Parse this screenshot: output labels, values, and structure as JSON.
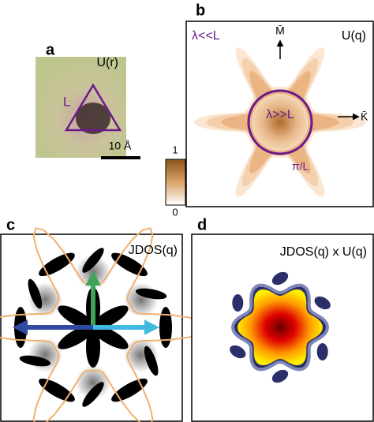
{
  "panels": [
    {
      "label": "a",
      "title": "U(r)",
      "length_label": "L",
      "scale_bar": "10 Å"
    },
    {
      "label": "b",
      "title": "U(q)",
      "short_wavelength": "λ<<L",
      "long_wavelength": "λ>>L",
      "radius": "π/L",
      "m_point": "M̄",
      "k_point": "K̄"
    },
    {
      "label": "c",
      "title": "JDOS(q)"
    },
    {
      "label": "d",
      "title": "JDOS(q) x U(q)"
    }
  ],
  "colorbar": {
    "max": 1,
    "min": 0
  }
}
